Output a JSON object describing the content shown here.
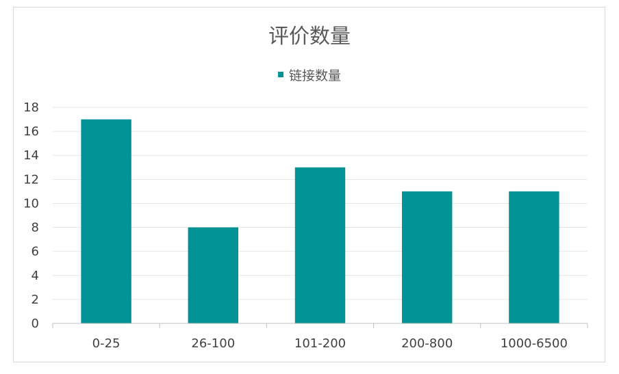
{
  "chart_data": {
    "type": "bar",
    "title": "评价数量",
    "categories": [
      "0-25",
      "26-100",
      "101-200",
      "200-800",
      "1000-6500"
    ],
    "series": [
      {
        "name": "链接数量",
        "values": [
          17,
          8,
          13,
          11,
          11
        ],
        "color": "#009294"
      }
    ],
    "ylim": [
      0,
      18
    ],
    "yticks": [
      0,
      2,
      4,
      6,
      8,
      10,
      12,
      14,
      16,
      18
    ],
    "grid": true,
    "legend_position": "top"
  }
}
